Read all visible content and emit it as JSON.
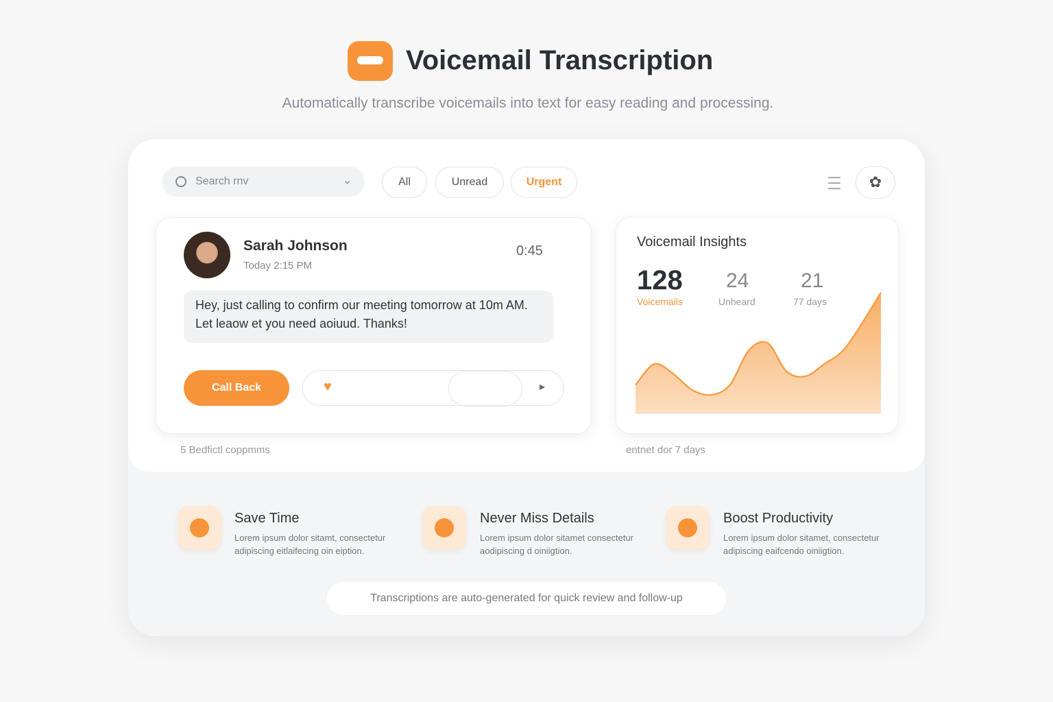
{
  "header": {
    "title": "Voicemail Transcription",
    "subtitle": "Automatically transcribe voicemails into text for easy reading and processing."
  },
  "toolbar": {
    "search": "Search rnv",
    "filters": [
      "All",
      "Unread",
      "Urgent"
    ]
  },
  "message": {
    "name": "Sarah Johnson",
    "time": "Today 2:15 PM",
    "duration": "0:45",
    "text": "Hey, just calling to confirm our meeting tomorrow at 10m AM. Let leaow et you need aoiuud. Thanks!",
    "action": "Call Back",
    "note": "5 Bedfictl coppmms"
  },
  "insights": {
    "title": "Voicemail Insights",
    "stats": [
      {
        "value": "128",
        "label": "Voicemails"
      },
      {
        "value": "24",
        "label": "Unheard"
      },
      {
        "value": "21",
        "label": "77 days"
      }
    ],
    "note": "entnet dor 7 days",
    "chart": {
      "type": "area",
      "color": "#f7a04a",
      "ylim": [
        0,
        100
      ],
      "values": [
        23,
        40,
        32,
        19,
        15,
        23,
        51,
        57,
        34,
        30,
        40,
        51,
        73,
        98
      ]
    }
  },
  "features": [
    {
      "title": "Save Time",
      "text": "Lorem ipsum dolor sitamt, consectetur adipiscing eitlaifecing oin eiption."
    },
    {
      "title": "Never Miss Details",
      "text": "Lorem ipsum dolor sitamet consectetur aodipiscing d oiniigtion."
    },
    {
      "title": "Boost Productivity",
      "text": "Lorem ipsum dolor sitamet, consectetur adipiscing eaifcendo oiniigtion."
    }
  ],
  "footer": "Transcriptions are auto-generated for quick review and follow-up"
}
